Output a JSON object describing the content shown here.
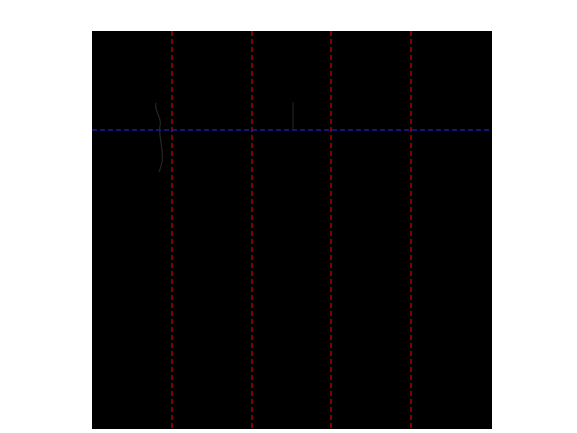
{
  "figure": {
    "background_color": "#ffffff",
    "panel_color": "#000000",
    "vertical_line_color": "#cc0000",
    "horizontal_line_color": "#1a1aa6",
    "faint_mark_color": "#262626",
    "vertical_line_count": 4,
    "horizontal_line_count": 1,
    "line_style": "dashed"
  }
}
